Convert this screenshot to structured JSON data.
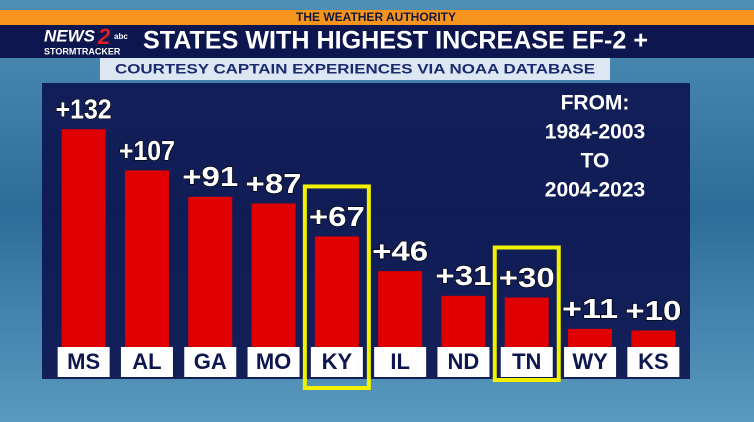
{
  "header": {
    "tagline": "THE WEATHER AUTHORITY",
    "logo": {
      "news": "NEWS",
      "channel": "2",
      "network": "abc",
      "brand": "STORMTRACKER"
    }
  },
  "chart_data": {
    "type": "bar",
    "title": "STATES WITH HIGHEST INCREASE EF-2 +",
    "subtitle": "COURTESY CAPTAIN EXPERIENCES VIA NOAA DATABASE",
    "annotation": [
      "FROM:",
      "1984-2003",
      "TO",
      "2004-2023"
    ],
    "categories": [
      "MS",
      "AL",
      "GA",
      "MO",
      "KY",
      "IL",
      "ND",
      "TN",
      "WY",
      "KS"
    ],
    "values": [
      132,
      107,
      91,
      87,
      67,
      46,
      31,
      30,
      11,
      10
    ],
    "value_labels": [
      "+132",
      "+107",
      "+91",
      "+87",
      "+67",
      "+46",
      "+31",
      "+30",
      "+11",
      "+10"
    ],
    "color": "#e00000",
    "highlight": [
      4,
      7
    ],
    "highlight_color": "#f2f200"
  }
}
